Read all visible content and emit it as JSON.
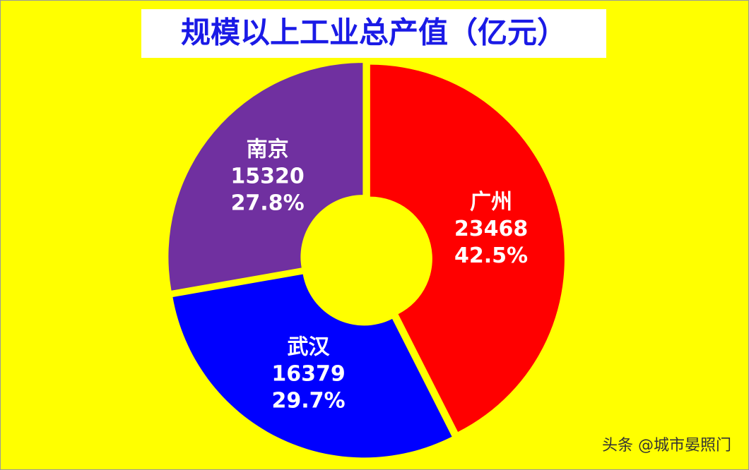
{
  "chart_data": {
    "type": "donut",
    "title": "规模以上工业总产值（亿元）",
    "categories": [
      "广州",
      "武汉",
      "南京"
    ],
    "values": [
      23468,
      16379,
      15320
    ],
    "percent_labels": [
      "42.5%",
      "29.7%",
      "27.8%"
    ],
    "colors": [
      "#ff0000",
      "#0000ff",
      "#7030a0"
    ],
    "background": "#ffff00",
    "watermark": "头条 @城市晏照门"
  }
}
